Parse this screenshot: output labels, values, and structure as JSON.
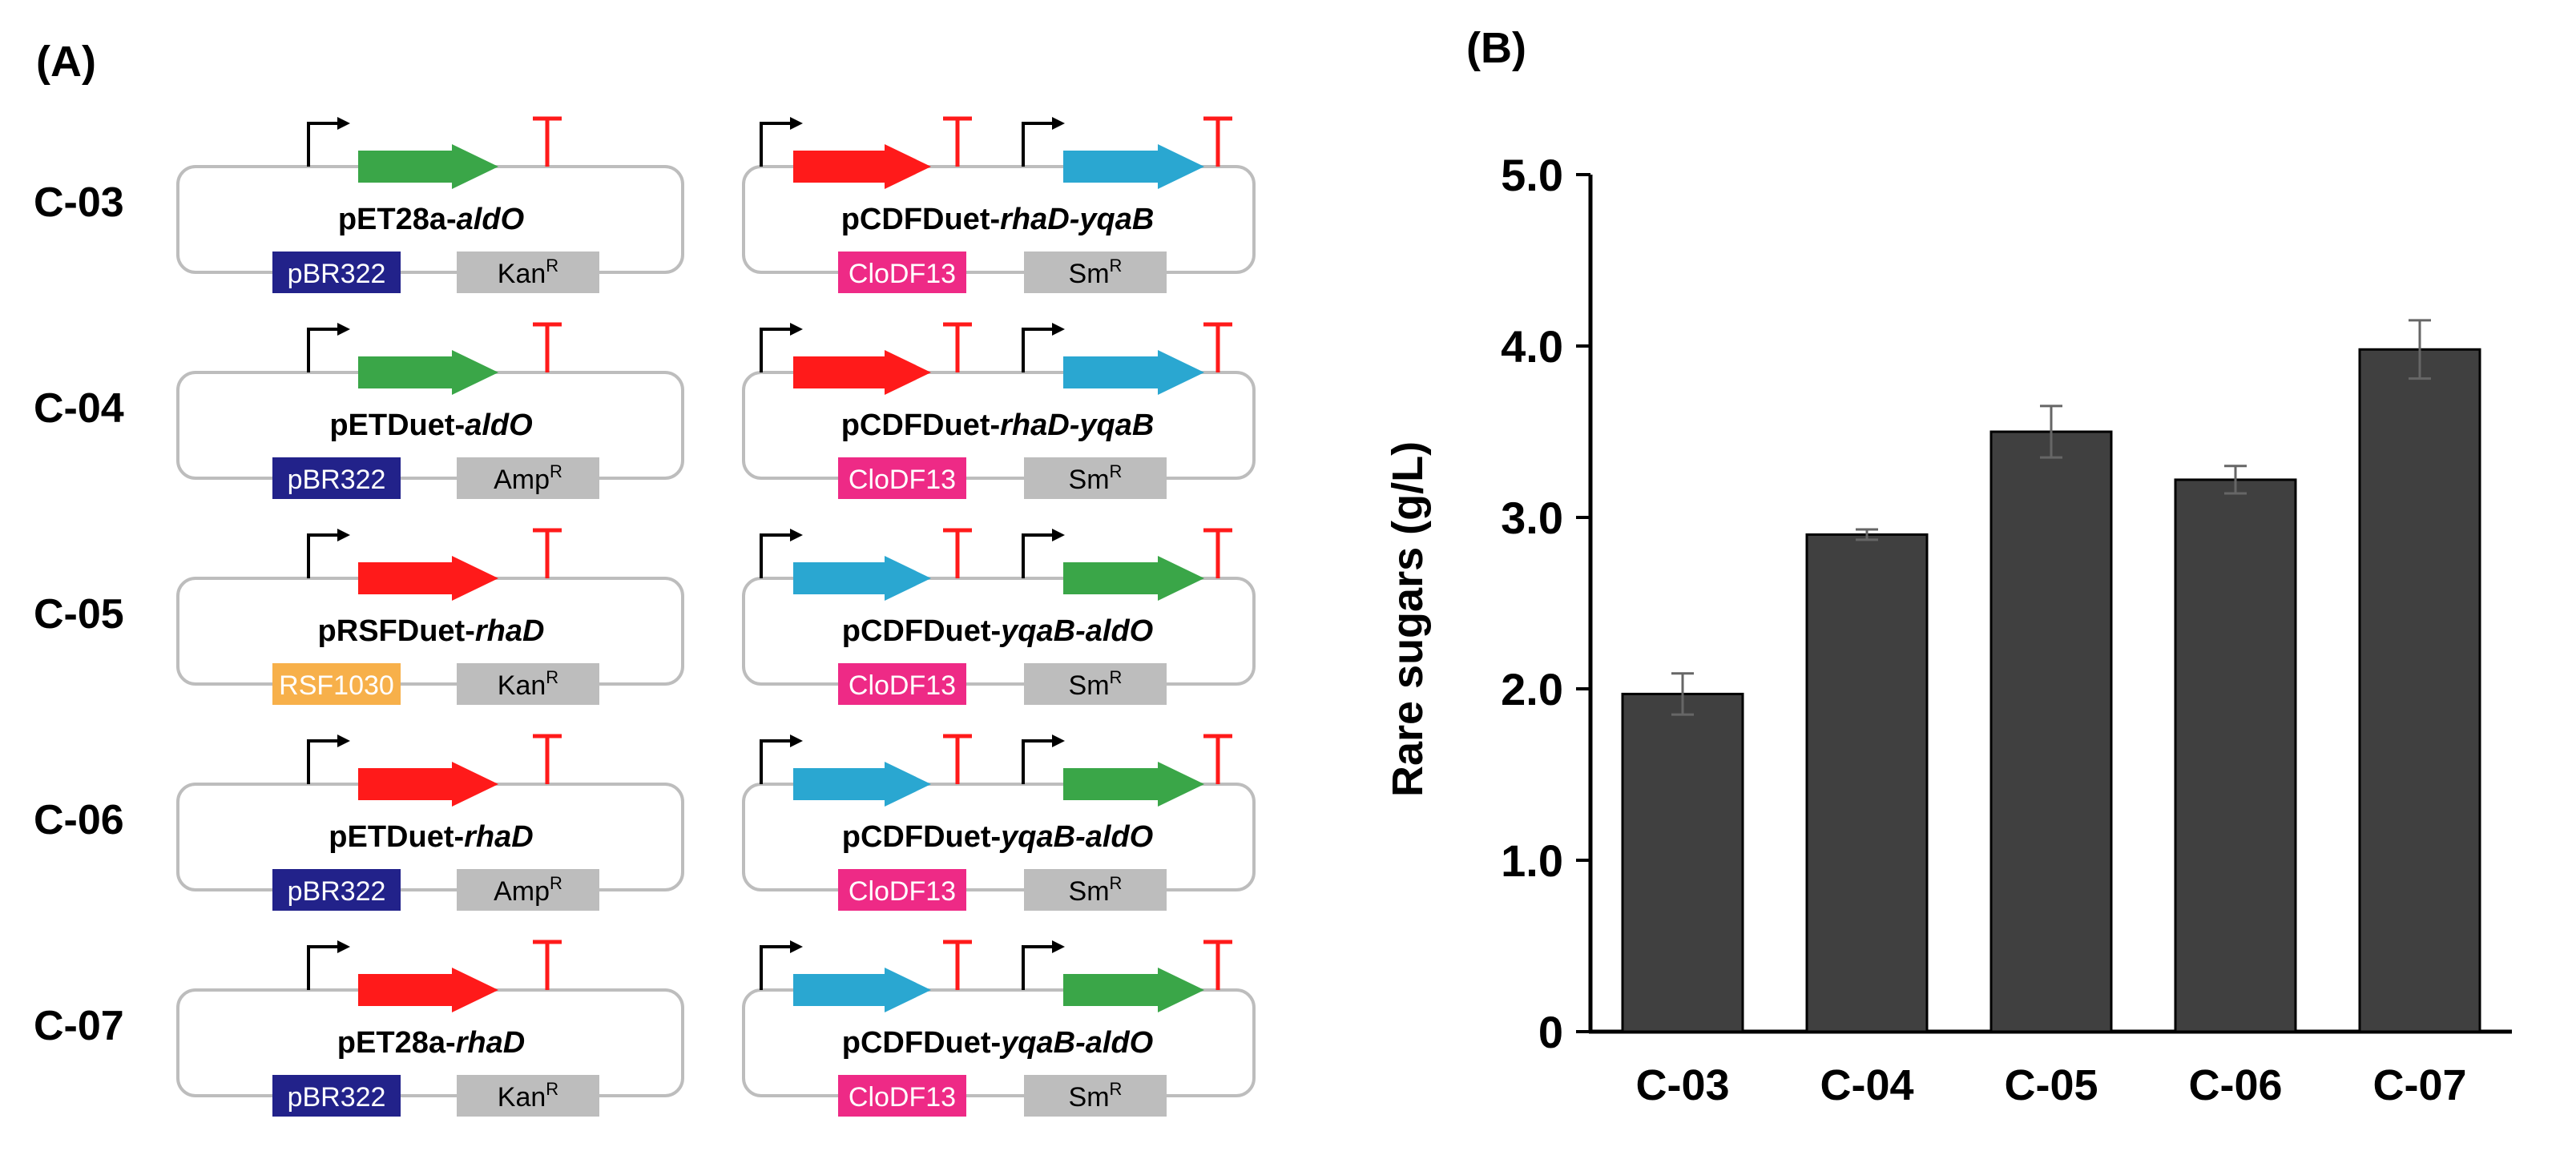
{
  "colors": {
    "green": "#3aa648",
    "red": "#ff1a1a",
    "blue": "#2aa7d1",
    "pbr322": "#22228a",
    "rsf1030": "#f7b04a",
    "clodf13": "#ee2a86",
    "marker": "#bdbdbd",
    "bar": "#404040",
    "outline": "#bdbdbd"
  },
  "panelA": {
    "label": "(A)",
    "constructs": [
      {
        "id": "C-03",
        "left": {
          "name": "pET28a-",
          "gene": "aldO",
          "genes": [
            "green"
          ],
          "ori": "pBR322",
          "ori_color": "pbr322",
          "marker_base": "Kan",
          "marker_sup": "R"
        },
        "right": {
          "name": "pCDFDuet-",
          "gene": "rhaD-yqaB",
          "genes": [
            "red",
            "blue"
          ],
          "ori": "CloDF13",
          "ori_color": "clodf13",
          "marker_base": "Sm",
          "marker_sup": "R"
        }
      },
      {
        "id": "C-04",
        "left": {
          "name": "pETDuet-",
          "gene": "aldO",
          "genes": [
            "green"
          ],
          "ori": "pBR322",
          "ori_color": "pbr322",
          "marker_base": "Amp",
          "marker_sup": "R"
        },
        "right": {
          "name": "pCDFDuet-",
          "gene": "rhaD-yqaB",
          "genes": [
            "red",
            "blue"
          ],
          "ori": "CloDF13",
          "ori_color": "clodf13",
          "marker_base": "Sm",
          "marker_sup": "R"
        }
      },
      {
        "id": "C-05",
        "left": {
          "name": "pRSFDuet-",
          "gene": "rhaD",
          "genes": [
            "red"
          ],
          "ori": "RSF1030",
          "ori_color": "rsf1030",
          "marker_base": "Kan",
          "marker_sup": "R"
        },
        "right": {
          "name": "pCDFDuet-",
          "gene": "yqaB-aldO",
          "genes": [
            "blue",
            "green"
          ],
          "ori": "CloDF13",
          "ori_color": "clodf13",
          "marker_base": "Sm",
          "marker_sup": "R"
        }
      },
      {
        "id": "C-06",
        "left": {
          "name": "pETDuet-",
          "gene": "rhaD",
          "genes": [
            "red"
          ],
          "ori": "pBR322",
          "ori_color": "pbr322",
          "marker_base": "Amp",
          "marker_sup": "R"
        },
        "right": {
          "name": "pCDFDuet-",
          "gene": "yqaB-aldO",
          "genes": [
            "blue",
            "green"
          ],
          "ori": "CloDF13",
          "ori_color": "clodf13",
          "marker_base": "Sm",
          "marker_sup": "R"
        }
      },
      {
        "id": "C-07",
        "left": {
          "name": "pET28a-",
          "gene": "rhaD",
          "genes": [
            "red"
          ],
          "ori": "pBR322",
          "ori_color": "pbr322",
          "marker_base": "Kan",
          "marker_sup": "R"
        },
        "right": {
          "name": "pCDFDuet-",
          "gene": "yqaB-aldO",
          "genes": [
            "blue",
            "green"
          ],
          "ori": "CloDF13",
          "ori_color": "clodf13",
          "marker_base": "Sm",
          "marker_sup": "R"
        }
      }
    ]
  },
  "chart_data": {
    "type": "bar",
    "panel_label": "(B)",
    "title": "",
    "xlabel": "",
    "ylabel": "Rare sugars (g/L)",
    "categories": [
      "C-03",
      "C-04",
      "C-05",
      "C-06",
      "C-07"
    ],
    "values": [
      1.97,
      2.9,
      3.5,
      3.22,
      3.98
    ],
    "errors": [
      0.12,
      0.03,
      0.15,
      0.08,
      0.17
    ],
    "ylim": [
      0,
      5.0
    ],
    "yticks": [
      0,
      1.0,
      2.0,
      3.0,
      4.0,
      5.0
    ],
    "ytick_labels": [
      "0",
      "1.0",
      "2.0",
      "3.0",
      "4.0",
      "5.0"
    ],
    "grid": false,
    "legend": "none"
  }
}
